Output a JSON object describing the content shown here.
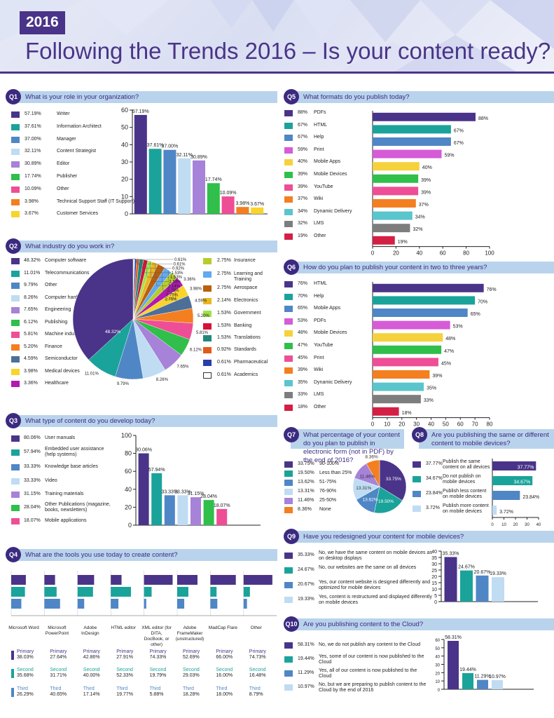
{
  "header": {
    "year": "2016",
    "title": "Following the Trends 2016 – Is your content ready?"
  },
  "colors": {
    "purple": "#4a3489",
    "teal": "#1aa39a",
    "blue": "#4f86c6",
    "lightblue": "#bfdcf3",
    "lavender": "#a682d8",
    "green": "#2fbf4a",
    "pink": "#ee4e95",
    "orange": "#f37f21",
    "yellow": "#f8d42c",
    "magenta": "#d65bd6",
    "gold": "#f5d23c",
    "cyan": "#5ac5cc",
    "gray": "#7d7d7d",
    "red": "#d41f45"
  },
  "q1": {
    "badge": "Q1",
    "question": "What is your role in your organization?",
    "chart_data": {
      "type": "bar",
      "categories": [
        "Writer",
        "Information Architect",
        "Manager",
        "Content Strategist",
        "Editor",
        "Publisher",
        "Other",
        "Technical Support Staff (IT Support)",
        "Customer Services"
      ],
      "values": [
        57.19,
        37.61,
        37.0,
        32.11,
        30.89,
        17.74,
        10.09,
        3.98,
        3.67
      ],
      "labels": [
        "57.19%",
        "37.61%",
        "37.00%",
        "32.11%",
        "30.89%",
        "17.74%",
        "10.09%",
        "3.98%",
        "3.67%"
      ],
      "ylim": [
        0,
        60
      ],
      "yticks": [
        "0",
        "10",
        "20",
        "30",
        "40",
        "50",
        "60"
      ]
    }
  },
  "q2": {
    "badge": "Q2",
    "question": "What industry do you work in?",
    "chart_data": {
      "type": "pie",
      "categories": [
        "Computer software",
        "Telecommunications",
        "Other",
        "Computer hardware",
        "Engineering",
        "Publishing",
        "Machine industry",
        "Finance",
        "Semiconductor",
        "Medical devices",
        "Healthcare",
        "Insurance",
        "Learning and Training",
        "Aerospace",
        "Electronics",
        "Government",
        "Banking",
        "Translations",
        "Standards",
        "Pharmaceutical",
        "Academics"
      ],
      "values": [
        48.32,
        11.01,
        9.79,
        8.26,
        7.65,
        6.12,
        5.81,
        5.2,
        4.59,
        3.98,
        3.36,
        2.75,
        2.75,
        2.75,
        2.14,
        1.53,
        1.53,
        1.53,
        0.92,
        0.61,
        0.61
      ],
      "labels": [
        "48.32%",
        "11.01%",
        "9.79%",
        "8.26%",
        "7.65%",
        "6.12%",
        "5.81%",
        "5.20%",
        "4.59%",
        "3.98%",
        "3.36%",
        "2.75%",
        "2.75%",
        "2.75%",
        "2.14%",
        "1.53%",
        "1.53%",
        "1.53%",
        "0.92%",
        "0.61%",
        "0.61%"
      ]
    }
  },
  "q3": {
    "badge": "Q3",
    "question": "What type of content do you develop today?",
    "chart_data": {
      "type": "bar",
      "categories": [
        "User manuals",
        "Embedded user assistance (help systems)",
        "Knowledge base articles",
        "Video",
        "Training materials",
        "Other Publications (magazine, books, newsletters)",
        "Mobile applications"
      ],
      "values": [
        80.06,
        57.94,
        33.33,
        33.33,
        31.15,
        28.04,
        18.07
      ],
      "labels": [
        "80.06%",
        "57.94%",
        "33.33%",
        "33.33%",
        "31.15%",
        "28.04%",
        "18.07%"
      ],
      "ylim": [
        0,
        100
      ],
      "yticks": [
        "0",
        "20",
        "40",
        "60",
        "80",
        "100"
      ]
    }
  },
  "q4": {
    "badge": "Q4",
    "question": "What are the tools you use today to create content?",
    "chart_data": {
      "type": "bar",
      "categories": [
        "Microsoft Word",
        "Microsoft PowerPoint",
        "Adobe InDesign",
        "HTML editor",
        "XML editor (for DITA, DocBook, or other)",
        "Adobe FrameMaker (unstructured)",
        "MadCap Flare",
        "Other"
      ],
      "series": [
        {
          "name": "Primary",
          "values": [
            38.03,
            27.64,
            42.86,
            27.91,
            74.33,
            52.69,
            66.0,
            74.73
          ],
          "labels": [
            "38.03%",
            "27.64%",
            "42.86%",
            "27.91%",
            "74.33%",
            "52.69%",
            "66.00%",
            "74.73%"
          ]
        },
        {
          "name": "Second",
          "values": [
            35.68,
            31.71,
            40.0,
            52.33,
            19.79,
            29.03,
            16.0,
            16.48
          ],
          "labels": [
            "35.68%",
            "31.71%",
            "40.00%",
            "52.33%",
            "19.79%",
            "29.03%",
            "16.00%",
            "16.48%"
          ]
        },
        {
          "name": "Third",
          "values": [
            26.29,
            40.65,
            17.14,
            19.77,
            5.88,
            18.28,
            18.0,
            8.79
          ],
          "labels": [
            "26.29%",
            "40.65%",
            "17.14%",
            "19.77%",
            "5.88%",
            "18.28%",
            "18.00%",
            "8.79%"
          ]
        }
      ]
    }
  },
  "q5": {
    "badge": "Q5",
    "question": "What formats do you publish today?",
    "chart_data": {
      "type": "bar",
      "categories": [
        "PDFs",
        "HTML",
        "Help",
        "Print",
        "Mobile Apps",
        "Mobile Devices",
        "YouTube",
        "Wiki",
        "Dynamic Delivery",
        "LMS",
        "Other"
      ],
      "values": [
        88,
        67,
        67,
        59,
        40,
        39,
        39,
        37,
        34,
        32,
        19
      ],
      "labels": [
        "88%",
        "67%",
        "67%",
        "59%",
        "40%",
        "39%",
        "39%",
        "37%",
        "34%",
        "32%",
        "19%"
      ],
      "xlim": [
        0,
        100
      ],
      "xticks": [
        "0",
        "20",
        "40",
        "60",
        "80",
        "100"
      ]
    }
  },
  "q6": {
    "badge": "Q6",
    "question": "How do you plan to publish your content in two to three years?",
    "chart_data": {
      "type": "bar",
      "categories": [
        "HTML",
        "Help",
        "Mobile Apps",
        "PDFs",
        "Mobile Devices",
        "YouTube",
        "Print",
        "Wiki",
        "Dynamic Delivery",
        "LMS",
        "Other"
      ],
      "values": [
        76,
        70,
        65,
        53,
        48,
        47,
        45,
        39,
        35,
        33,
        18
      ],
      "labels": [
        "76%",
        "70%",
        "65%",
        "53%",
        "48%",
        "47%",
        "45%",
        "39%",
        "35%",
        "33%",
        "18%"
      ],
      "xlim": [
        0,
        80
      ],
      "xticks": [
        "0",
        "10",
        "20",
        "30",
        "40",
        "50",
        "60",
        "70",
        "80"
      ]
    }
  },
  "q7": {
    "badge": "Q7",
    "question": "What percentage of your content do you plan to publish in electronic form (not in PDF) by the end of 2016?",
    "chart_data": {
      "type": "pie",
      "categories": [
        "90-100%",
        "Less than 25%",
        "51-75%",
        "76-90%",
        "25-50%",
        "None"
      ],
      "values": [
        33.75,
        19.5,
        13.62,
        13.31,
        11.46,
        8.36
      ],
      "labels": [
        "33.75%",
        "19.50%",
        "13.62%",
        "13.31%",
        "11.46%",
        "8.36%"
      ]
    }
  },
  "q8": {
    "badge": "Q8",
    "question": "Are you publishing the same or different content to mobile devices?",
    "chart_data": {
      "type": "bar",
      "categories": [
        "Publish the same content on all devices",
        "Do not publish on mobile devices",
        "Publish less content on mobile devices",
        "Publish more content on mobile devices"
      ],
      "values": [
        37.77,
        34.67,
        23.84,
        3.72
      ],
      "labels": [
        "37.77%",
        "34.67%",
        "23.84%",
        "3.72%"
      ],
      "xlim": [
        0,
        40
      ],
      "xticks": [
        "0",
        "10",
        "20",
        "30",
        "40"
      ]
    }
  },
  "q9": {
    "badge": "Q9",
    "question": "Have you redesigned your content for mobile devices?",
    "chart_data": {
      "type": "bar",
      "categories": [
        "No, we have the same content on mobile devices as on desktop displays",
        "No, our websites are the same on all devices",
        "Yes, our content website is designed differently and optimized for mobile devices",
        "Yes, content is restructured and displayed differently on mobile devices"
      ],
      "values": [
        35.33,
        24.67,
        20.67,
        19.33
      ],
      "labels": [
        "35.33%",
        "24.67%",
        "20.67%",
        "19.33%"
      ],
      "ylim": [
        0,
        40
      ],
      "yticks": [
        "0",
        "5",
        "10",
        "15",
        "20",
        "25",
        "30",
        "35",
        "40"
      ]
    }
  },
  "q10": {
    "badge": "Q10",
    "question": "Are you publishing content to the Cloud?",
    "chart_data": {
      "type": "bar",
      "categories": [
        "No, we do not publish any content to the Cloud",
        "Yes, some of our content is now published to the Cloud",
        "Yes, all of our content is now published to the Cloud",
        "No, but we are preparing to publish content to the Cloud by the end of 2016"
      ],
      "values": [
        58.31,
        19.44,
        11.29,
        10.97
      ],
      "labels": [
        "58.31%",
        "19.44%",
        "11.29%",
        "10.97%"
      ],
      "ylim": [
        0,
        60
      ],
      "yticks": [
        "0",
        "10",
        "20",
        "30",
        "40",
        "50",
        "60"
      ]
    }
  }
}
